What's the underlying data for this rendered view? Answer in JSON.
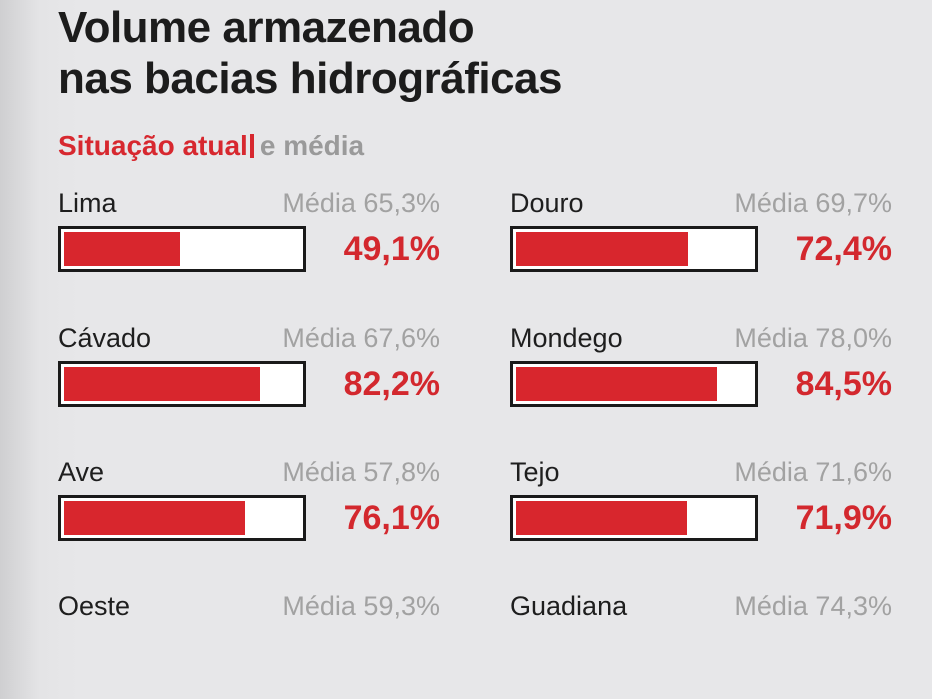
{
  "header": {
    "title_line1": "Volume armazenado",
    "title_line2": "nas bacias hidrográficas",
    "subtitle_current": "Situação atual",
    "subtitle_average": "e média"
  },
  "chart_data": {
    "type": "bar",
    "title": "Volume armazenado nas bacias hidrográficas",
    "subtitle": "Situação atual e média",
    "xlabel": "",
    "ylabel": "",
    "ylim": [
      0,
      100
    ],
    "average_prefix": "Média",
    "categories": [
      "Lima",
      "Douro",
      "Cávado",
      "Mondego",
      "Ave",
      "Tejo",
      "Oeste",
      "Guadiana"
    ],
    "series": [
      {
        "name": "Situação atual",
        "values": [
          49.1,
          72.4,
          82.2,
          84.5,
          76.1,
          71.9,
          null,
          null
        ],
        "labels": [
          "49,1%",
          "72,4%",
          "82,2%",
          "84,5%",
          "76,1%",
          "71,9%",
          "",
          ""
        ]
      },
      {
        "name": "Média",
        "values": [
          65.3,
          69.7,
          67.6,
          78.0,
          57.8,
          71.6,
          59.3,
          74.3
        ],
        "labels": [
          "65,3%",
          "69,7%",
          "67,6%",
          "78,0%",
          "57,8%",
          "71,6%",
          "59,3%",
          "74,3%"
        ]
      }
    ]
  }
}
